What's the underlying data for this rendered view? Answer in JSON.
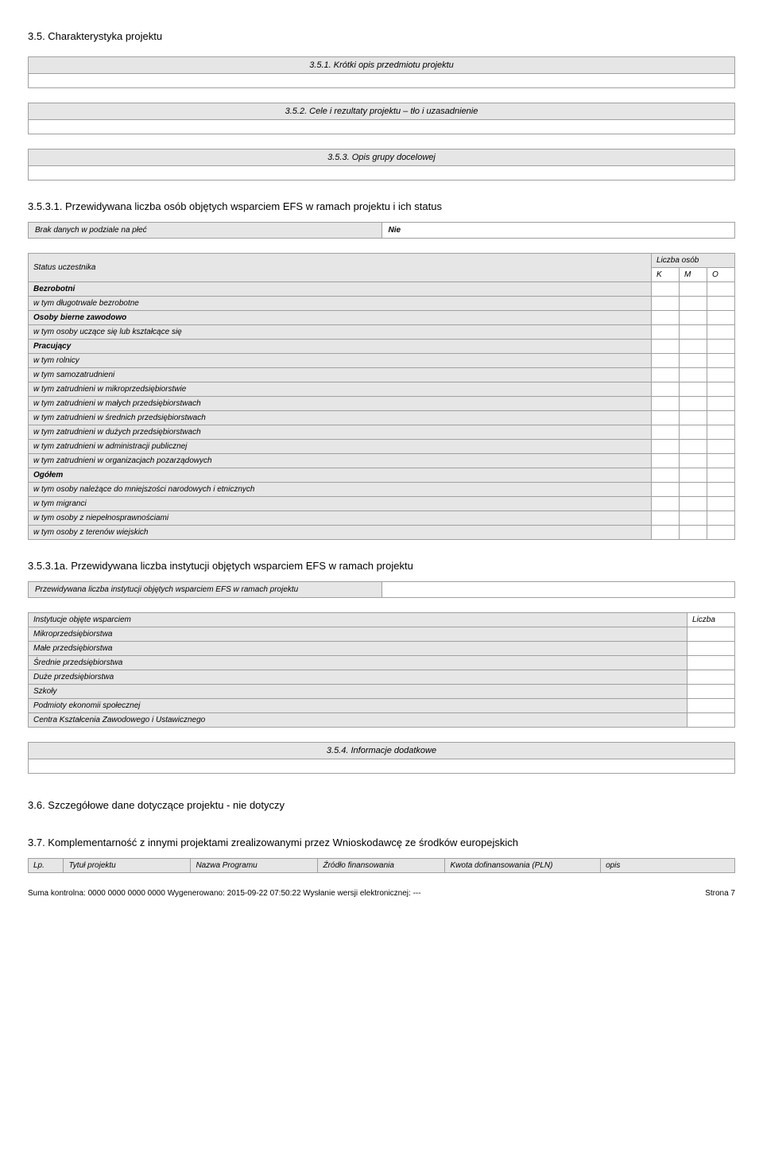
{
  "sections": {
    "s35": "3.5. Charakterystyka projektu",
    "s351": "3.5.1. Krótki opis przedmiotu projektu",
    "s352": "3.5.2. Cele i rezultaty projektu – tło i uzasadnienie",
    "s353": "3.5.3. Opis grupy docelowej",
    "s3531": "3.5.3.1. Przewidywana liczba osób objętych wsparciem EFS w ramach projektu i ich status",
    "s3531a": "3.5.3.1a. Przewidywana liczba instytucji objętych wsparciem EFS w ramach projektu",
    "s354": "3.5.4. Informacje dodatkowe",
    "s36": "3.6. Szczegółowe dane dotyczące projektu - nie dotyczy",
    "s37": "3.7. Komplementarność z innymi projektami zrealizowanymi przez Wnioskodawcę ze środków europejskich"
  },
  "gender_split": {
    "label": "Brak danych w podziale na płeć",
    "value": "Nie"
  },
  "participant_table": {
    "status_label": "Status uczestnika",
    "count_label": "Liczba osób",
    "cols": {
      "k": "K",
      "m": "M",
      "o": "O"
    },
    "rows": [
      {
        "label": "Bezrobotni",
        "bold": true
      },
      {
        "label": "w tym długotrwale bezrobotne",
        "bold": false
      },
      {
        "label": "Osoby bierne zawodowo",
        "bold": true
      },
      {
        "label": "w tym osoby uczące się lub kształcące się",
        "bold": false
      },
      {
        "label": "Pracujący",
        "bold": true
      },
      {
        "label": "w tym rolnicy",
        "bold": false
      },
      {
        "label": "w tym samozatrudnieni",
        "bold": false
      },
      {
        "label": "w tym zatrudnieni w mikroprzedsiębiorstwie",
        "bold": false
      },
      {
        "label": "w tym zatrudnieni w małych przedsiębiorstwach",
        "bold": false
      },
      {
        "label": "w tym zatrudnieni w średnich przedsiębiorstwach",
        "bold": false
      },
      {
        "label": "w tym zatrudnieni w dużych przedsiębiorstwach",
        "bold": false
      },
      {
        "label": "w tym zatrudnieni w administracji publicznej",
        "bold": false
      },
      {
        "label": "w tym zatrudnieni w organizacjach pozarządowych",
        "bold": false
      },
      {
        "label": "Ogółem",
        "bold": true
      },
      {
        "label": "w tym osoby należące do mniejszości narodowych i etnicznych",
        "bold": false
      },
      {
        "label": "w tym migranci",
        "bold": false
      },
      {
        "label": "w tym osoby z niepełnosprawnościami",
        "bold": false
      },
      {
        "label": "w tym osoby z terenów wiejskich",
        "bold": false
      }
    ]
  },
  "inst_forecast": {
    "label": "Przewidywana liczba instytucji objętych wsparciem EFS w ramach projektu"
  },
  "inst_table": {
    "header1": "Instytucje objęte wsparciem",
    "header2": "Liczba",
    "rows": [
      "Mikroprzedsiębiorstwa",
      "Małe przedsiębiorstwa",
      "Średnie przedsiębiorstwa",
      "Duże przedsiębiorstwa",
      "Szkoły",
      "Podmioty ekonomii społecznej",
      "Centra Kształcenia Zawodowego i Ustawicznego"
    ]
  },
  "compl_table": {
    "lp": "Lp.",
    "title": "Tytuł projektu",
    "program": "Nazwa Programu",
    "source": "Źródło finansowania",
    "amount": "Kwota dofinansowania (PLN)",
    "desc": "opis"
  },
  "footer": {
    "left": "Suma kontrolna: 0000 0000 0000 0000 Wygenerowano: 2015-09-22 07:50:22 Wysłanie wersji elektronicznej: ---",
    "right": "Strona 7"
  }
}
